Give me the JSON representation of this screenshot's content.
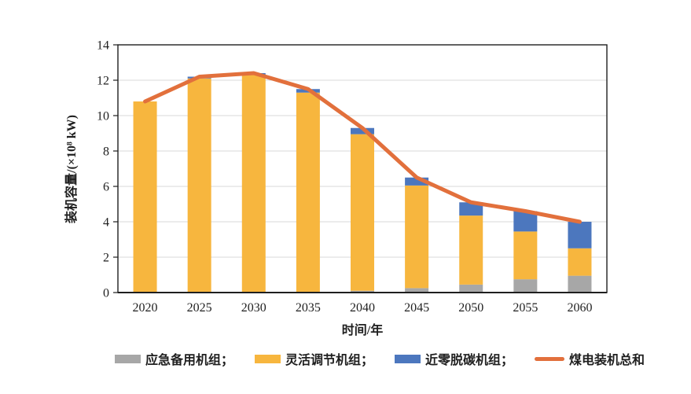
{
  "chart_data": {
    "type": "bar",
    "stacked": true,
    "title": "",
    "xlabel": "时间/年",
    "ylabel": "装机容量/(×10⁸ kW)",
    "ylim": [
      0,
      14
    ],
    "ytick_step": 2,
    "grid": true,
    "legend_position": "bottom",
    "categories": [
      "2020",
      "2025",
      "2030",
      "2035",
      "2040",
      "2045",
      "2050",
      "2055",
      "2060"
    ],
    "series": [
      {
        "name": "应急备用机组",
        "color": "#A7A7A7",
        "values": [
          0,
          0,
          0,
          0,
          0.1,
          0.25,
          0.45,
          0.75,
          0.95
        ]
      },
      {
        "name": "灵活调节机组",
        "color": "#F7B63E",
        "values": [
          10.8,
          12.1,
          12.3,
          11.3,
          8.85,
          5.8,
          3.9,
          2.7,
          1.55
        ]
      },
      {
        "name": "近零脱碳机组",
        "color": "#4C77BE",
        "values": [
          0,
          0.1,
          0.1,
          0.2,
          0.35,
          0.45,
          0.75,
          1.15,
          1.5
        ]
      }
    ],
    "line_series": {
      "name": "煤电装机总和",
      "color": "#E2703C",
      "values": [
        10.8,
        12.2,
        12.4,
        11.5,
        9.3,
        6.5,
        5.1,
        4.6,
        4.0
      ]
    },
    "colors": {
      "grid": "#D9D9D9",
      "frame": "#1f1f1f",
      "text": "#1f1f1f"
    }
  },
  "legend": {
    "items": [
      {
        "key": "emergency-backup-units",
        "label": "应急备用机组；",
        "swatch": "box",
        "color": "#A7A7A7"
      },
      {
        "key": "flexible-regulation-units",
        "label": "灵活调节机组；",
        "swatch": "box",
        "color": "#F7B63E"
      },
      {
        "key": "near-zero-decarbon-units",
        "label": "近零脱碳机组；",
        "swatch": "box",
        "color": "#4C77BE"
      },
      {
        "key": "coal-power-total",
        "label": "煤电装机总和",
        "swatch": "line",
        "color": "#E2703C"
      }
    ]
  }
}
